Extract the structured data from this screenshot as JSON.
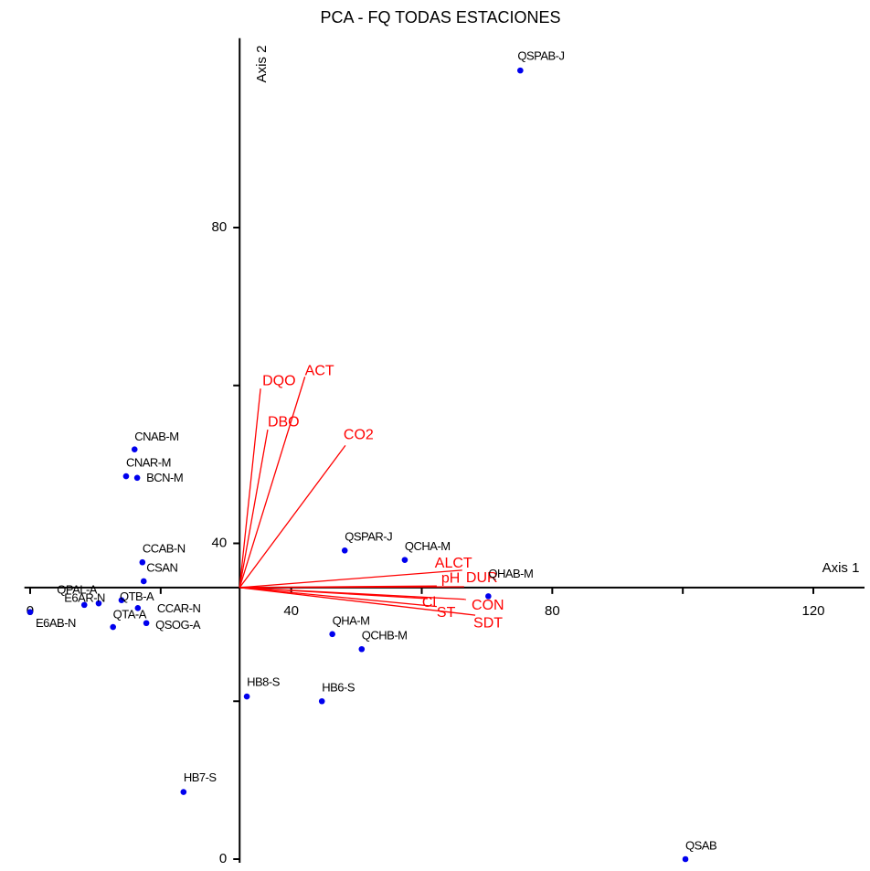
{
  "chart_data": {
    "type": "biplot",
    "title": "PCA - FQ TODAS ESTACIONES",
    "x_label": "Axis 1",
    "y_label": "Axis 2",
    "xlim": [
      -2,
      127
    ],
    "ylim": [
      0,
      104
    ],
    "xticks": [
      0,
      40,
      80,
      120
    ],
    "xminorticks": [
      20,
      60,
      100
    ],
    "yticks": [
      0,
      40,
      80
    ],
    "yminorticks": [
      20,
      60
    ],
    "origin": [
      32.1,
      34.4
    ],
    "points": {
      "color": "#0000ee",
      "labels": [
        "QSPAB-J",
        "CNAB-M",
        "CNAR-M",
        "BCN-M",
        "CCAB-N",
        "CSAN",
        "QSPAR-J",
        "QCHA-M",
        "QHAB-M",
        "QPAL-A",
        "E6AR-N",
        "E6AB-N",
        "QTB-A",
        "CCAR-N",
        "QTA-A",
        "QSOG-A",
        "QHA-M",
        "QCHB-M",
        "HB8-S",
        "HB6-S",
        "HB7-S",
        "QSAB"
      ],
      "x": [
        75.1,
        16.0,
        14.7,
        16.4,
        17.2,
        17.4,
        48.2,
        57.4,
        70.2,
        10.5,
        8.3,
        0.0,
        14.0,
        16.5,
        12.7,
        17.8,
        46.3,
        50.8,
        33.2,
        44.7,
        23.5,
        100.4
      ],
      "y": [
        99.9,
        51.9,
        48.5,
        48.3,
        37.6,
        35.2,
        39.1,
        37.9,
        33.3,
        32.4,
        32.2,
        31.3,
        32.8,
        31.8,
        29.4,
        29.9,
        28.5,
        26.6,
        20.6,
        20.0,
        8.5,
        0.0
      ]
    },
    "vectors": {
      "color": "#ff0000",
      "labels": [
        "DQO",
        "ACT",
        "DBO",
        "CO2",
        "ALCT",
        "pH",
        "DUR",
        "Cl",
        "CON",
        "ST",
        "SDT"
      ],
      "x": [
        35.3,
        42.1,
        36.4,
        48.3,
        66.2,
        62.3,
        66.5,
        60.9,
        66.8,
        62.3,
        68.2
      ],
      "y": [
        59.6,
        61.1,
        54.4,
        52.4,
        36.6,
        34.6,
        34.5,
        33.0,
        32.9,
        32.0,
        30.9
      ]
    }
  }
}
